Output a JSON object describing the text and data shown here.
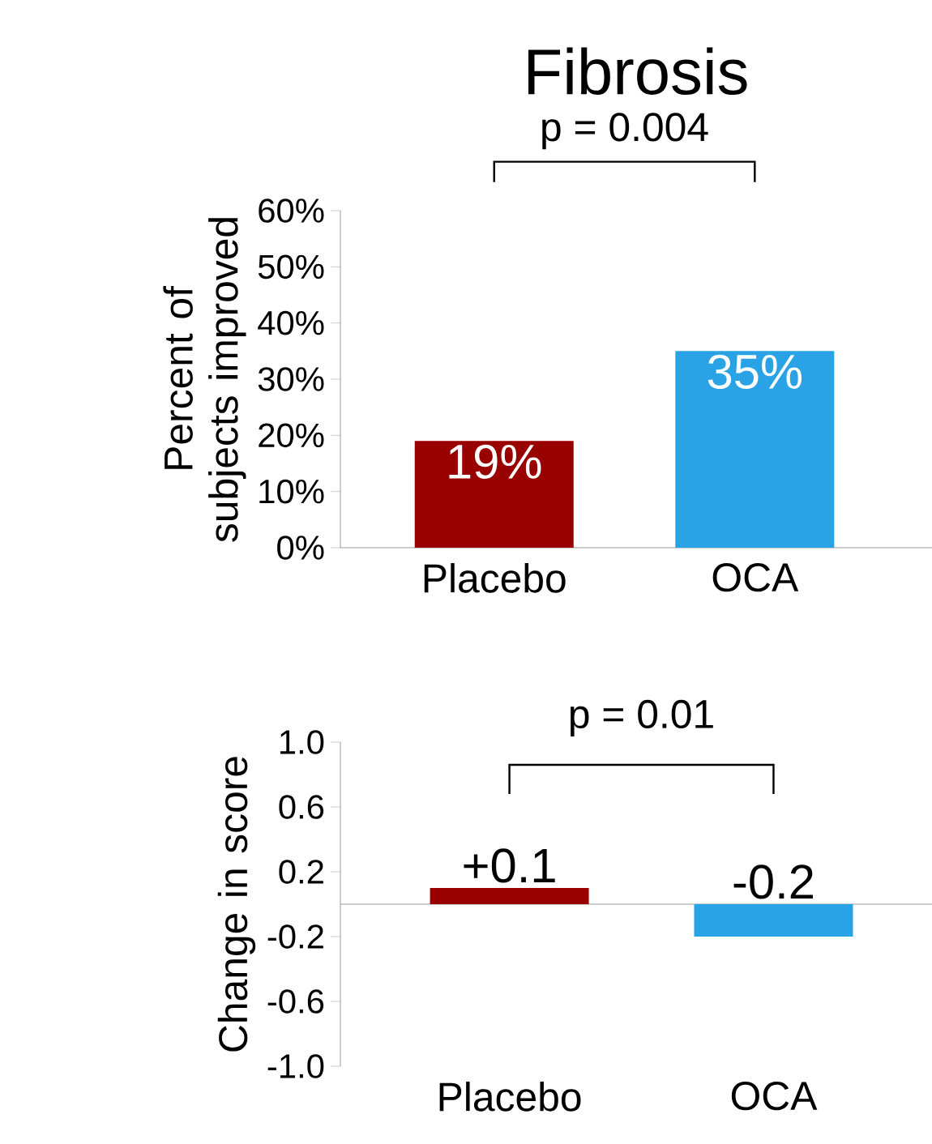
{
  "chart_data": [
    {
      "type": "bar",
      "title": "Fibrosis",
      "ylabel": "Percent of subjects improved",
      "categories": [
        "Placebo",
        "OCA"
      ],
      "values": [
        19,
        35
      ],
      "colors": [
        "#990000",
        "#29a3e5"
      ],
      "value_labels": [
        "19%",
        "35%"
      ],
      "ylim": [
        0,
        60
      ],
      "yticks": [
        {
          "value": 0,
          "label": "0%"
        },
        {
          "value": 10,
          "label": "10%"
        },
        {
          "value": 20,
          "label": "20%"
        },
        {
          "value": 30,
          "label": "30%"
        },
        {
          "value": 40,
          "label": "40%"
        },
        {
          "value": 50,
          "label": "50%"
        },
        {
          "value": 60,
          "label": "60%"
        }
      ],
      "annotations": [
        "p = 0.004"
      ]
    },
    {
      "type": "bar",
      "ylabel": "Change in score",
      "categories": [
        "Placebo",
        "OCA"
      ],
      "values": [
        0.1,
        -0.2
      ],
      "colors": [
        "#990000",
        "#29a3e5"
      ],
      "value_labels": [
        "+0.1",
        "-0.2"
      ],
      "ylim": [
        -1,
        1
      ],
      "yticks": [
        {
          "value": -1,
          "label": "-1.0"
        },
        {
          "value": -0.6,
          "label": "-0.6"
        },
        {
          "value": -0.2,
          "label": "-0.2"
        },
        {
          "value": 0.2,
          "label": "0.2"
        },
        {
          "value": 0.6,
          "label": "0.6"
        },
        {
          "value": 1,
          "label": "1.0"
        }
      ],
      "annotations": [
        "p = 0.01"
      ]
    }
  ]
}
